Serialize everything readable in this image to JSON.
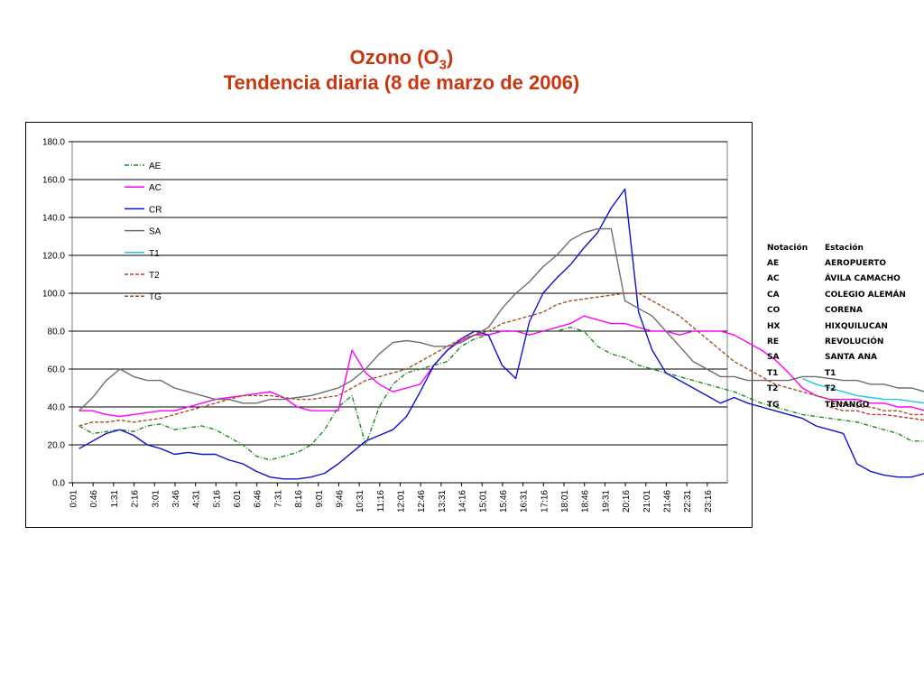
{
  "title": {
    "line1_prefix": "Ozono (O",
    "line1_sub": "3",
    "line1_suffix": ")",
    "line2": "Tendencia diaria (8 de marzo de 2006)"
  },
  "chart_data": {
    "type": "line",
    "ylim": [
      0,
      180
    ],
    "yticks": [
      "180.0",
      "160.0",
      "140.0",
      "120.0",
      "100.0",
      "80.0",
      "60.0",
      "40.0",
      "20.0",
      "0.0"
    ],
    "xticks": [
      "0:01",
      "0:46",
      "1:31",
      "2:16",
      "3:01",
      "3:46",
      "4:31",
      "5:16",
      "6:01",
      "6:46",
      "7:31",
      "8:16",
      "9:01",
      "9:46",
      "10:31",
      "11:16",
      "12:01",
      "12:46",
      "13:31",
      "14:16",
      "15:01",
      "15:46",
      "16:31",
      "17:16",
      "18:01",
      "18:46",
      "19:31",
      "20:16",
      "21:01",
      "21:46",
      "22:31",
      "23:16"
    ],
    "x_step_hours": 0.5,
    "grid": true,
    "legend_position": "top-left",
    "series": [
      {
        "name": "AE",
        "color": "#1e8c1e",
        "style": "dashdot",
        "values": [
          30,
          26,
          27,
          28,
          27,
          30,
          31,
          28,
          29,
          30,
          28,
          24,
          20,
          14,
          12,
          14,
          16,
          20,
          28,
          40,
          46,
          20,
          40,
          52,
          58,
          60,
          62,
          64,
          72,
          76,
          78,
          80,
          80,
          80,
          80,
          80,
          82,
          80,
          72,
          68,
          66,
          62,
          60,
          58,
          56,
          54,
          52,
          50,
          48,
          45,
          42,
          40,
          38,
          36,
          35,
          34,
          33,
          32,
          30,
          28,
          26,
          22,
          22,
          20
        ]
      },
      {
        "name": "AC",
        "color": "#ff00ff",
        "style": "solid",
        "values": [
          38,
          38,
          36,
          35,
          36,
          37,
          38,
          38,
          40,
          42,
          44,
          45,
          46,
          47,
          48,
          45,
          40,
          38,
          38,
          38,
          70,
          58,
          52,
          48,
          50,
          52,
          62,
          70,
          75,
          78,
          78,
          80,
          80,
          78,
          80,
          82,
          84,
          88,
          86,
          84,
          84,
          82,
          80,
          80,
          78,
          80,
          80,
          80,
          78,
          74,
          70,
          65,
          58,
          50,
          46,
          44,
          44,
          44,
          42,
          42,
          40,
          40,
          38,
          36
        ]
      },
      {
        "name": "CR",
        "color": "#1010d0",
        "style": "solid",
        "values": [
          18,
          22,
          26,
          28,
          25,
          20,
          18,
          15,
          16,
          15,
          15,
          12,
          10,
          6,
          3,
          2,
          2,
          3,
          5,
          10,
          16,
          22,
          25,
          28,
          35,
          48,
          62,
          70,
          76,
          80,
          78,
          62,
          55,
          85,
          100,
          108,
          115,
          124,
          132,
          145,
          155,
          90,
          70,
          58,
          54,
          50,
          46,
          42,
          45,
          42,
          40,
          38,
          36,
          34,
          30,
          28,
          26,
          10,
          6,
          4,
          3,
          3,
          5,
          8
        ]
      },
      {
        "name": "SA",
        "color": "#6e6e6e",
        "style": "solid",
        "values": [
          38,
          45,
          54,
          60,
          56,
          54,
          54,
          50,
          48,
          46,
          44,
          44,
          42,
          42,
          44,
          44,
          45,
          46,
          48,
          50,
          54,
          60,
          68,
          74,
          75,
          74,
          72,
          72,
          74,
          78,
          82,
          92,
          100,
          106,
          114,
          120,
          128,
          132,
          134,
          134,
          96,
          92,
          88,
          80,
          72,
          64,
          60,
          56,
          56,
          54,
          54,
          54,
          54,
          56,
          56,
          55,
          54,
          54,
          52,
          52,
          50,
          50,
          48,
          48
        ]
      },
      {
        "name": "T1",
        "color": "#22c8d8",
        "style": "solid",
        "values": [
          null,
          null,
          null,
          null,
          null,
          null,
          null,
          null,
          null,
          null,
          null,
          null,
          null,
          null,
          null,
          null,
          null,
          null,
          null,
          null,
          null,
          null,
          null,
          null,
          null,
          null,
          null,
          null,
          null,
          null,
          null,
          null,
          null,
          null,
          null,
          null,
          null,
          null,
          null,
          null,
          null,
          null,
          null,
          null,
          null,
          null,
          null,
          null,
          null,
          null,
          null,
          null,
          null,
          55,
          52,
          50,
          48,
          46,
          45,
          44,
          44,
          43,
          42,
          40
        ]
      },
      {
        "name": "T2",
        "color": "#c0392b",
        "style": "dashed",
        "values": [
          null,
          null,
          null,
          null,
          null,
          null,
          null,
          null,
          null,
          null,
          null,
          null,
          null,
          null,
          null,
          null,
          null,
          null,
          null,
          null,
          null,
          null,
          null,
          null,
          null,
          null,
          null,
          null,
          null,
          null,
          null,
          null,
          null,
          null,
          null,
          null,
          null,
          null,
          null,
          null,
          null,
          null,
          null,
          null,
          null,
          null,
          null,
          null,
          null,
          null,
          null,
          null,
          null,
          null,
          null,
          40,
          38,
          38,
          36,
          36,
          35,
          34,
          33,
          32
        ]
      },
      {
        "name": "TG",
        "color": "#a0522d",
        "style": "dashed",
        "values": [
          30,
          32,
          32,
          33,
          32,
          33,
          34,
          36,
          38,
          40,
          42,
          44,
          46,
          46,
          46,
          45,
          44,
          44,
          45,
          46,
          50,
          54,
          56,
          58,
          60,
          64,
          68,
          72,
          76,
          78,
          80,
          84,
          86,
          88,
          90,
          94,
          96,
          97,
          98,
          99,
          100,
          100,
          96,
          92,
          88,
          82,
          76,
          70,
          64,
          60,
          56,
          52,
          50,
          48,
          46,
          44,
          42,
          40,
          40,
          38,
          38,
          36,
          36,
          34
        ]
      }
    ]
  },
  "table": {
    "headers": [
      "Notación",
      "Estación"
    ],
    "rows": [
      [
        "AE",
        "AEROPUERTO"
      ],
      [
        "AC",
        "ÁVILA CAMACHO"
      ],
      [
        "CA",
        "COLEGIO ALEMÁN"
      ],
      [
        "CO",
        "CORENA"
      ],
      [
        "HX",
        "HIXQUILUCAN"
      ],
      [
        "RE",
        "REVOLUCIÓN"
      ],
      [
        "SA",
        "SANTA ANA"
      ],
      [
        "T1",
        "T1"
      ],
      [
        "T2",
        "T2"
      ],
      [
        "TG",
        "TENANGO"
      ]
    ]
  }
}
